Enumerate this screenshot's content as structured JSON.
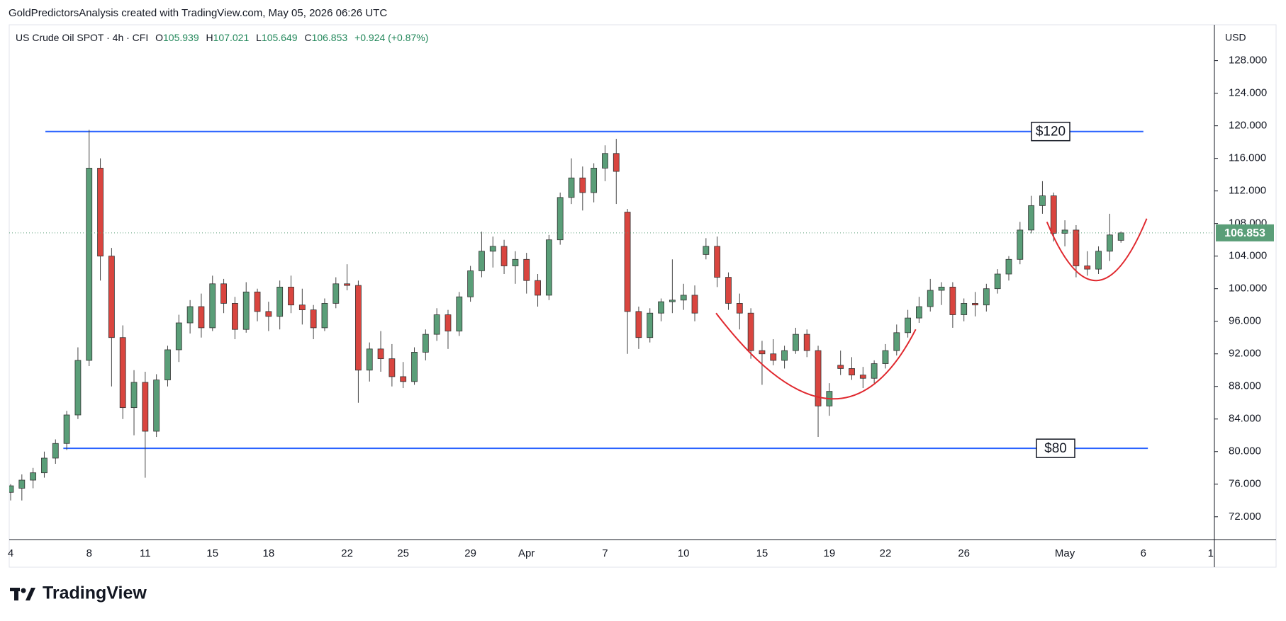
{
  "chart_data": {
    "type": "candlestick",
    "attribution": "GoldPredictorsAnalysis created with TradingView.com, May 05, 2026 06:26 UTC",
    "symbol": "US Crude Oil SPOT · 4h · CFI",
    "legend": {
      "o_label": "O",
      "o": "105.939",
      "h_label": "H",
      "h": "107.021",
      "l_label": "L",
      "l": "105.649",
      "c_label": "C",
      "c": "106.853",
      "change": "+0.924 (+0.87%)"
    },
    "currency": "USD",
    "price_tag": "106.853",
    "logo": "TradingView",
    "up_color": "#5a9e78",
    "down_color": "#d9453f",
    "ylim": [
      69.2,
      132.4
    ],
    "yticks": [
      {
        "value": 72,
        "label": "72.000"
      },
      {
        "value": 76,
        "label": "76.000"
      },
      {
        "value": 80,
        "label": "80.000"
      },
      {
        "value": 84,
        "label": "84.000"
      },
      {
        "value": 88,
        "label": "88.000"
      },
      {
        "value": 92,
        "label": "92.000"
      },
      {
        "value": 96,
        "label": "96.000"
      },
      {
        "value": 100,
        "label": "100.000"
      },
      {
        "value": 104,
        "label": "104.000"
      },
      {
        "value": 108,
        "label": "108.000"
      },
      {
        "value": 112,
        "label": "112.000"
      },
      {
        "value": 116,
        "label": "116.000"
      },
      {
        "value": 120,
        "label": "120.000"
      },
      {
        "value": 124,
        "label": "124.000"
      },
      {
        "value": 128,
        "label": "128.000"
      }
    ],
    "levels": [
      {
        "label": "$120",
        "value": 119.3,
        "color": "#2962ff"
      },
      {
        "label": "$80",
        "value": 80.4,
        "color": "#2962ff"
      }
    ],
    "categories": [
      "4",
      null,
      null,
      null,
      null,
      null,
      null,
      "8",
      null,
      null,
      null,
      null,
      "11",
      null,
      null,
      null,
      null,
      null,
      "15",
      null,
      null,
      null,
      null,
      "18",
      null,
      null,
      null,
      null,
      null,
      null,
      "22",
      null,
      null,
      null,
      null,
      "25",
      null,
      null,
      null,
      null,
      null,
      "29",
      null,
      null,
      null,
      null,
      "Apr",
      null,
      null,
      null,
      null,
      null,
      null,
      "7",
      null,
      null,
      null,
      null,
      null,
      null,
      "10",
      null,
      null,
      null,
      null,
      null,
      null,
      "15",
      null,
      null,
      null,
      null,
      null,
      "19",
      null,
      null,
      null,
      null,
      "22",
      null,
      null,
      null,
      null,
      null,
      null,
      "26",
      null,
      null,
      null,
      null,
      null,
      null,
      null,
      null,
      "May",
      null,
      null,
      null,
      null,
      null,
      null,
      "6",
      null,
      null,
      null,
      null,
      null,
      "1"
    ],
    "ohlc": [
      [
        75,
        76,
        74,
        75.8
      ],
      [
        75.5,
        77.2,
        74,
        76.5
      ],
      [
        76.5,
        78,
        75.5,
        77.4
      ],
      [
        77.4,
        80,
        76.8,
        79.2
      ],
      [
        79.2,
        81.5,
        78.5,
        81
      ],
      [
        81,
        85,
        80.2,
        84.5
      ],
      [
        84.5,
        92.8,
        84,
        91.2
      ],
      [
        91.2,
        119.5,
        90.5,
        114.8
      ],
      [
        114.8,
        116,
        101,
        104
      ],
      [
        104,
        105,
        88,
        94
      ],
      [
        94,
        95.5,
        84,
        85.4
      ],
      [
        85.4,
        90,
        82,
        88.5
      ],
      [
        88.5,
        89.8,
        76.8,
        82.5
      ],
      [
        82.5,
        89.5,
        81.8,
        88.8
      ],
      [
        88.8,
        93,
        88,
        92.5
      ],
      [
        92.5,
        96.8,
        91,
        95.8
      ],
      [
        95.8,
        98.6,
        94.5,
        97.8
      ],
      [
        97.8,
        99.4,
        94,
        95.2
      ],
      [
        95.2,
        101.6,
        94.8,
        100.6
      ],
      [
        100.6,
        101.2,
        97,
        98.2
      ],
      [
        98.2,
        99,
        93.8,
        95
      ],
      [
        95,
        100.8,
        94.6,
        99.6
      ],
      [
        99.6,
        100,
        96,
        97.2
      ],
      [
        97.2,
        98.4,
        94.8,
        96.6
      ],
      [
        96.6,
        101,
        95,
        100.2
      ],
      [
        100.2,
        101.6,
        97,
        98
      ],
      [
        98,
        100,
        95.6,
        97.4
      ],
      [
        97.4,
        98,
        93.8,
        95.2
      ],
      [
        95.2,
        98.8,
        94.8,
        98.2
      ],
      [
        98.2,
        101.4,
        97.6,
        100.6
      ],
      [
        100.6,
        103,
        99.8,
        100.4
      ],
      [
        100.4,
        101,
        86,
        90
      ],
      [
        90,
        93.4,
        88.6,
        92.6
      ],
      [
        92.6,
        94.8,
        89.8,
        91.4
      ],
      [
        91.4,
        93.2,
        88,
        89.2
      ],
      [
        89.2,
        91,
        87.8,
        88.6
      ],
      [
        88.6,
        92.8,
        88.2,
        92.2
      ],
      [
        92.2,
        95,
        91.2,
        94.4
      ],
      [
        94.4,
        97.6,
        93.6,
        96.8
      ],
      [
        96.8,
        97.4,
        92.6,
        94.8
      ],
      [
        94.8,
        99.6,
        94.2,
        99
      ],
      [
        99,
        102.8,
        98.4,
        102.2
      ],
      [
        102.2,
        107,
        101.4,
        104.6
      ],
      [
        104.6,
        106.4,
        102.6,
        105.2
      ],
      [
        105.2,
        106,
        101.8,
        102.8
      ],
      [
        102.8,
        104.6,
        100.6,
        103.6
      ],
      [
        103.6,
        104.4,
        99.4,
        101
      ],
      [
        101,
        101.8,
        97.8,
        99.2
      ],
      [
        99.2,
        106.6,
        98.6,
        106
      ],
      [
        106,
        111.8,
        105.4,
        111.2
      ],
      [
        111.2,
        116,
        110.4,
        113.6
      ],
      [
        113.6,
        115,
        109.6,
        111.8
      ],
      [
        111.8,
        115.4,
        110.6,
        114.8
      ],
      [
        114.8,
        117.6,
        113.2,
        116.6
      ],
      [
        116.6,
        118.4,
        110.4,
        114.4
      ],
      [
        109.4,
        109.8,
        92,
        97.2
      ],
      [
        97.2,
        97.8,
        92.6,
        94
      ],
      [
        94,
        97.6,
        93.4,
        97
      ],
      [
        97,
        98.8,
        96,
        98.4
      ],
      [
        98.4,
        103.6,
        97,
        98.6
      ],
      [
        98.6,
        100.6,
        97.4,
        99.2
      ],
      [
        99.2,
        100.4,
        96,
        97
      ],
      [
        104.2,
        106.2,
        103.6,
        105.2
      ],
      [
        105.2,
        106.4,
        100.2,
        101.4
      ],
      [
        101.4,
        102,
        97.4,
        98.2
      ],
      [
        98.2,
        99.4,
        95,
        97
      ],
      [
        97,
        97.6,
        91.4,
        92.4
      ],
      [
        92.4,
        93.6,
        88.2,
        92
      ],
      [
        92,
        93.8,
        90.6,
        91.2
      ],
      [
        91.2,
        93,
        90.2,
        92.4
      ],
      [
        92.4,
        95.2,
        92,
        94.4
      ],
      [
        94.4,
        95,
        91.6,
        92.4
      ],
      [
        92.4,
        93,
        81.8,
        85.6
      ],
      [
        85.6,
        88.4,
        84.4,
        87.4
      ],
      [
        90.6,
        92.4,
        89.4,
        90.2
      ],
      [
        90.2,
        91.6,
        88.8,
        89.4
      ],
      [
        89.4,
        90.4,
        87.8,
        89
      ],
      [
        89,
        91.2,
        88.4,
        90.8
      ],
      [
        90.8,
        93.2,
        90.2,
        92.4
      ],
      [
        92.4,
        95.6,
        91.8,
        94.6
      ],
      [
        94.6,
        97.4,
        94,
        96.4
      ],
      [
        96.4,
        99,
        95.8,
        97.8
      ],
      [
        97.8,
        101.2,
        97.2,
        99.8
      ],
      [
        99.8,
        100.8,
        98,
        100.2
      ],
      [
        100.2,
        100.8,
        95.2,
        96.8
      ],
      [
        96.8,
        98.8,
        96,
        98.2
      ],
      [
        98.2,
        99.6,
        96.6,
        98
      ],
      [
        98,
        100.6,
        97.2,
        100
      ],
      [
        100,
        102.4,
        99.4,
        101.8
      ],
      [
        101.8,
        104,
        101,
        103.6
      ],
      [
        103.6,
        108.2,
        103,
        107.2
      ],
      [
        107.2,
        111.4,
        106.8,
        110.2
      ],
      [
        110.2,
        113.2,
        109.2,
        111.4
      ],
      [
        111.4,
        111.8,
        105.8,
        106.8
      ],
      [
        106.8,
        108.4,
        105.2,
        107.2
      ],
      [
        107.2,
        107.8,
        101.4,
        102.8
      ],
      [
        102.8,
        104.6,
        101.6,
        102.4
      ],
      [
        102.4,
        105.2,
        101.8,
        104.6
      ],
      [
        104.6,
        109.2,
        103.4,
        106.6
      ],
      [
        105.939,
        107.021,
        105.649,
        106.853
      ],
      null,
      null,
      null,
      null,
      null,
      null,
      null,
      null
    ]
  }
}
